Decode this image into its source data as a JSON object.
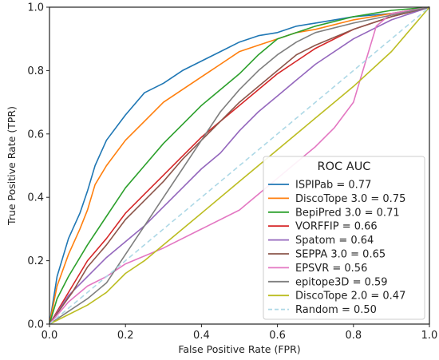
{
  "chart_data": {
    "type": "line",
    "title": "",
    "xlabel": "False Positive Rate (FPR)",
    "ylabel": "True Positive Rate (TPR)",
    "xlim": [
      0,
      1
    ],
    "ylim": [
      0,
      1
    ],
    "xticks": [
      "0.0",
      "0.2",
      "0.4",
      "0.6",
      "0.8",
      "1.0"
    ],
    "yticks": [
      "0.0",
      "0.2",
      "0.4",
      "0.6",
      "0.8",
      "1.0"
    ],
    "grid": false,
    "legend": {
      "title": "ROC AUC",
      "placement": "lower-right"
    },
    "series": [
      {
        "name": "ISPIPab = 0.77",
        "color": "#1f77b4",
        "style": "solid",
        "x": [
          0,
          0.02,
          0.05,
          0.08,
          0.1,
          0.12,
          0.15,
          0.2,
          0.25,
          0.3,
          0.35,
          0.4,
          0.45,
          0.5,
          0.55,
          0.6,
          0.65,
          0.7,
          0.8,
          0.9,
          1.0
        ],
        "y": [
          0,
          0.15,
          0.27,
          0.35,
          0.42,
          0.5,
          0.58,
          0.66,
          0.73,
          0.76,
          0.8,
          0.83,
          0.86,
          0.89,
          0.91,
          0.92,
          0.94,
          0.95,
          0.97,
          0.98,
          1.0
        ]
      },
      {
        "name": "DiscoTope 3.0 = 0.75",
        "color": "#ff7f0e",
        "style": "solid",
        "x": [
          0,
          0.02,
          0.05,
          0.08,
          0.1,
          0.12,
          0.15,
          0.2,
          0.25,
          0.3,
          0.35,
          0.4,
          0.45,
          0.5,
          0.55,
          0.6,
          0.65,
          0.7,
          0.8,
          0.9,
          1.0
        ],
        "y": [
          0,
          0.12,
          0.22,
          0.3,
          0.36,
          0.44,
          0.5,
          0.58,
          0.64,
          0.7,
          0.74,
          0.78,
          0.82,
          0.86,
          0.88,
          0.9,
          0.92,
          0.93,
          0.96,
          0.98,
          1.0
        ]
      },
      {
        "name": "BepiPred 3.0 = 0.71",
        "color": "#2ca02c",
        "style": "solid",
        "x": [
          0,
          0.02,
          0.05,
          0.1,
          0.15,
          0.2,
          0.25,
          0.3,
          0.35,
          0.4,
          0.45,
          0.5,
          0.55,
          0.6,
          0.65,
          0.7,
          0.8,
          0.9,
          1.0
        ],
        "y": [
          0,
          0.08,
          0.15,
          0.25,
          0.34,
          0.43,
          0.5,
          0.57,
          0.63,
          0.69,
          0.74,
          0.79,
          0.85,
          0.9,
          0.92,
          0.94,
          0.97,
          0.99,
          1.0
        ]
      },
      {
        "name": "VORFFIP = 0.66",
        "color": "#d62728",
        "style": "solid",
        "x": [
          0,
          0.03,
          0.06,
          0.1,
          0.15,
          0.2,
          0.25,
          0.3,
          0.35,
          0.4,
          0.45,
          0.5,
          0.55,
          0.6,
          0.65,
          0.7,
          0.8,
          0.9,
          1.0
        ],
        "y": [
          0,
          0.06,
          0.12,
          0.2,
          0.27,
          0.35,
          0.41,
          0.47,
          0.53,
          0.59,
          0.64,
          0.69,
          0.74,
          0.79,
          0.83,
          0.87,
          0.93,
          0.97,
          1.0
        ]
      },
      {
        "name": "Spatom = 0.64",
        "color": "#9467bd",
        "style": "solid",
        "x": [
          0,
          0.05,
          0.1,
          0.15,
          0.2,
          0.25,
          0.3,
          0.35,
          0.4,
          0.45,
          0.5,
          0.55,
          0.6,
          0.65,
          0.7,
          0.8,
          0.9,
          1.0
        ],
        "y": [
          0,
          0.09,
          0.15,
          0.21,
          0.26,
          0.31,
          0.37,
          0.43,
          0.49,
          0.54,
          0.61,
          0.67,
          0.72,
          0.77,
          0.82,
          0.9,
          0.96,
          1.0
        ]
      },
      {
        "name": "SEPPA 3.0 = 0.65",
        "color": "#8c564b",
        "style": "solid",
        "x": [
          0,
          0.03,
          0.06,
          0.1,
          0.15,
          0.2,
          0.25,
          0.3,
          0.35,
          0.4,
          0.45,
          0.5,
          0.55,
          0.6,
          0.65,
          0.7,
          0.8,
          0.9,
          1.0
        ],
        "y": [
          0,
          0.05,
          0.1,
          0.18,
          0.25,
          0.33,
          0.39,
          0.45,
          0.52,
          0.58,
          0.64,
          0.7,
          0.75,
          0.8,
          0.85,
          0.88,
          0.93,
          0.97,
          1.0
        ]
      },
      {
        "name": "EPSVR = 0.56",
        "color": "#e377c2",
        "style": "solid",
        "x": [
          0,
          0.05,
          0.1,
          0.15,
          0.2,
          0.3,
          0.4,
          0.5,
          0.55,
          0.6,
          0.65,
          0.7,
          0.75,
          0.8,
          0.82,
          0.84,
          0.86,
          0.9,
          1.0
        ],
        "y": [
          0,
          0.07,
          0.12,
          0.15,
          0.19,
          0.24,
          0.3,
          0.36,
          0.41,
          0.46,
          0.51,
          0.56,
          0.62,
          0.7,
          0.78,
          0.86,
          0.94,
          0.98,
          1.0
        ]
      },
      {
        "name": "epitope3D = 0.59",
        "color": "#7f7f7f",
        "style": "solid",
        "x": [
          0,
          0.05,
          0.1,
          0.15,
          0.2,
          0.25,
          0.3,
          0.35,
          0.4,
          0.45,
          0.5,
          0.55,
          0.6,
          0.65,
          0.7,
          0.8,
          1.0
        ],
        "y": [
          0,
          0.04,
          0.08,
          0.13,
          0.22,
          0.31,
          0.4,
          0.49,
          0.58,
          0.67,
          0.74,
          0.8,
          0.85,
          0.89,
          0.92,
          0.95,
          1.0
        ]
      },
      {
        "name": "DiscoTope 2.0 = 0.47",
        "color": "#bcbd22",
        "style": "solid",
        "x": [
          0,
          0.05,
          0.1,
          0.15,
          0.2,
          0.25,
          0.3,
          0.4,
          0.5,
          0.6,
          0.7,
          0.8,
          0.9,
          1.0
        ],
        "y": [
          0,
          0.03,
          0.06,
          0.1,
          0.16,
          0.2,
          0.25,
          0.35,
          0.45,
          0.55,
          0.65,
          0.75,
          0.86,
          1.0
        ]
      },
      {
        "name": "Random = 0.50",
        "color": "#add8e6",
        "style": "dashed",
        "x": [
          0,
          1
        ],
        "y": [
          0,
          1
        ]
      }
    ]
  }
}
